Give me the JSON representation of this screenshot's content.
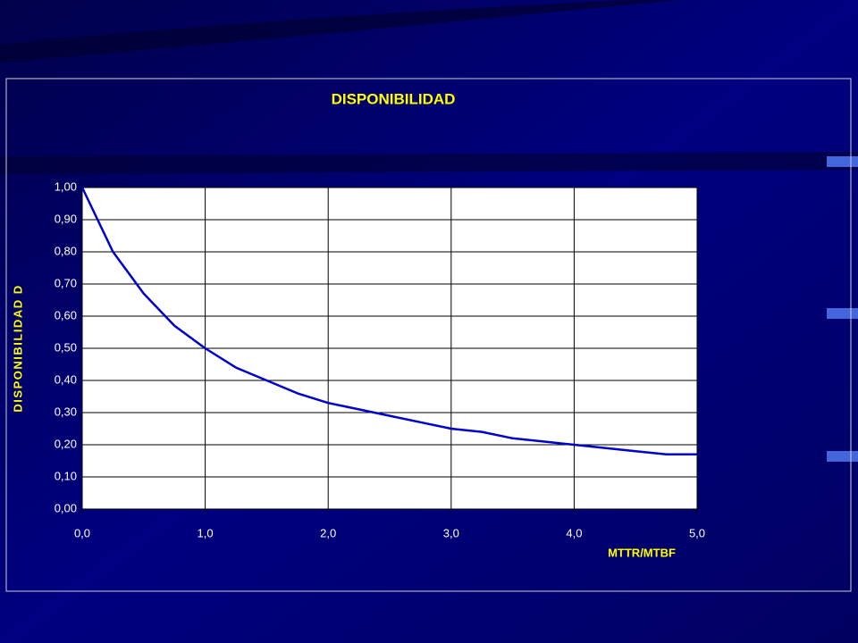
{
  "chart_data": {
    "type": "line",
    "title": "DISPONIBILIDAD",
    "x_label": "MTTR/MTBF",
    "y_label": "DISPONIBILIDAD  D",
    "x": [
      0,
      0.25,
      0.5,
      0.75,
      1,
      1.25,
      1.5,
      1.75,
      2,
      2.25,
      2.5,
      2.75,
      3,
      3.25,
      3.5,
      3.75,
      4,
      4.25,
      4.5,
      4.75,
      5
    ],
    "series": [
      {
        "name": "D",
        "color": "#0000cc",
        "values": [
          1,
          0.8,
          0.67,
          0.57,
          0.5,
          0.44,
          0.4,
          0.36,
          0.33,
          0.31,
          0.29,
          0.27,
          0.25,
          0.24,
          0.22,
          0.21,
          0.2,
          0.19,
          0.18,
          0.17,
          0.17
        ]
      }
    ],
    "xlim": [
      0,
      5
    ],
    "ylim": [
      0,
      1
    ],
    "xticks": [
      {
        "value": 0,
        "label": "0,0"
      },
      {
        "value": 1,
        "label": "1,0"
      },
      {
        "value": 2,
        "label": "2,0"
      },
      {
        "value": 3,
        "label": "3,0"
      },
      {
        "value": 4,
        "label": "4,0"
      },
      {
        "value": 5,
        "label": "5,0"
      }
    ],
    "yticks": [
      {
        "value": 0,
        "label": "0,00"
      },
      {
        "value": 0.1,
        "label": "0,10"
      },
      {
        "value": 0.2,
        "label": "0,20"
      },
      {
        "value": 0.3,
        "label": "0,30"
      },
      {
        "value": 0.4,
        "label": "0,40"
      },
      {
        "value": 0.5,
        "label": "0,50"
      },
      {
        "value": 0.6,
        "label": "0,60"
      },
      {
        "value": 0.7,
        "label": "0,70"
      },
      {
        "value": 0.8,
        "label": "0,80"
      },
      {
        "value": 0.9,
        "label": "0,90"
      },
      {
        "value": 1,
        "label": "1,00"
      }
    ],
    "grid": true
  }
}
